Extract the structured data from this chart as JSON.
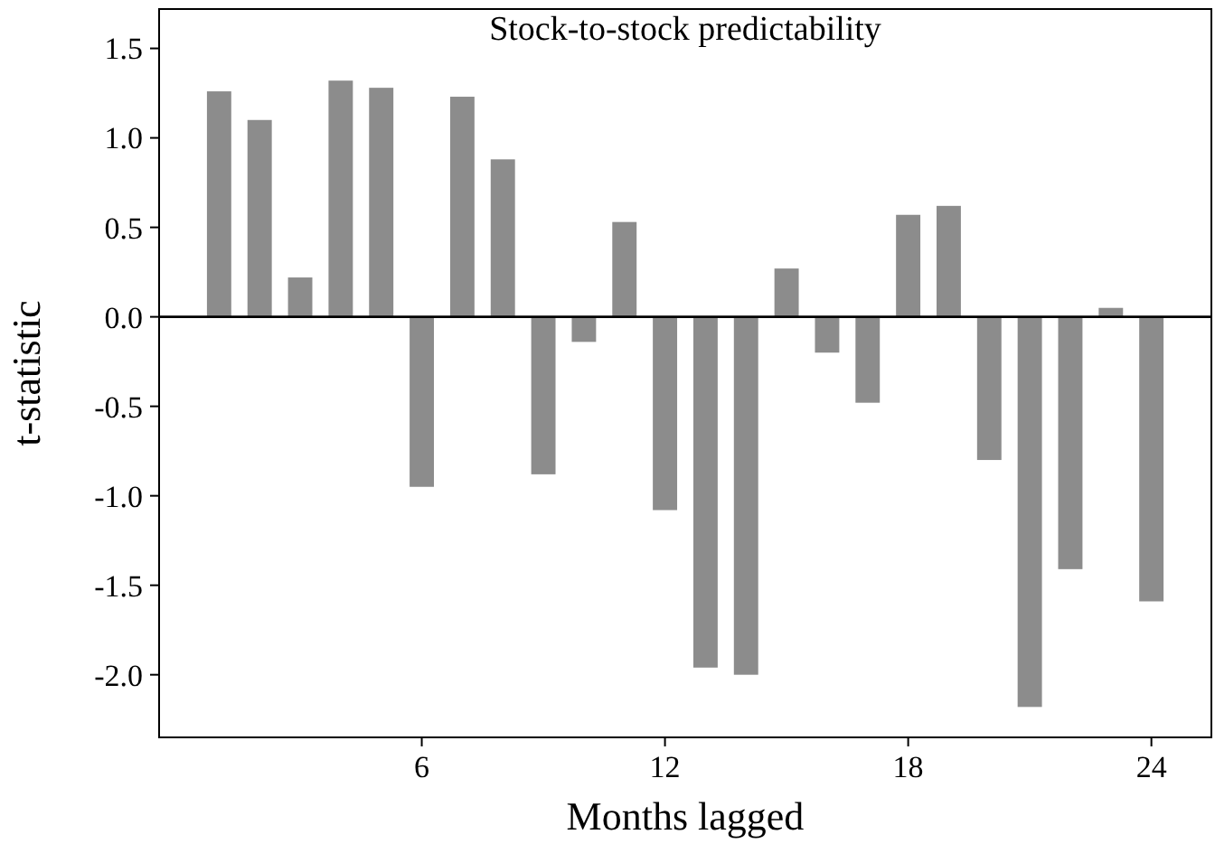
{
  "chart_data": {
    "type": "bar",
    "title": "Stock-to-stock predictability",
    "xlabel": "Months lagged",
    "ylabel": "t-statistic",
    "x": [
      1,
      2,
      3,
      4,
      5,
      6,
      7,
      8,
      9,
      10,
      11,
      12,
      13,
      14,
      15,
      16,
      17,
      18,
      19,
      20,
      21,
      22,
      23,
      24
    ],
    "values": [
      1.26,
      1.1,
      0.22,
      1.32,
      1.28,
      -0.95,
      1.23,
      0.88,
      -0.88,
      -0.14,
      0.53,
      -1.08,
      -1.96,
      -2.0,
      0.27,
      -0.2,
      -0.48,
      0.57,
      0.62,
      -0.8,
      -2.18,
      -1.41,
      0.05,
      -1.59
    ],
    "color": "#8c8c8c",
    "xlim": [
      -0.48,
      25.48
    ],
    "xticks": [
      6,
      12,
      18,
      24
    ],
    "ylim": [
      -2.35,
      1.72
    ],
    "yticks": [
      {
        "value": 1.5,
        "label": "1.5"
      },
      {
        "value": 1,
        "label": "1.0"
      },
      {
        "value": 0.5,
        "label": "0.5"
      },
      {
        "value": 0,
        "label": "0.0"
      },
      {
        "value": -0.5,
        "label": "-0.5"
      },
      {
        "value": -1,
        "label": "-1.0"
      },
      {
        "value": -1.5,
        "label": "-1.5"
      },
      {
        "value": -2,
        "label": "-2.0"
      }
    ],
    "ref_lines": [
      {
        "axis": "y",
        "value": 0,
        "color": "#000000"
      }
    ]
  }
}
